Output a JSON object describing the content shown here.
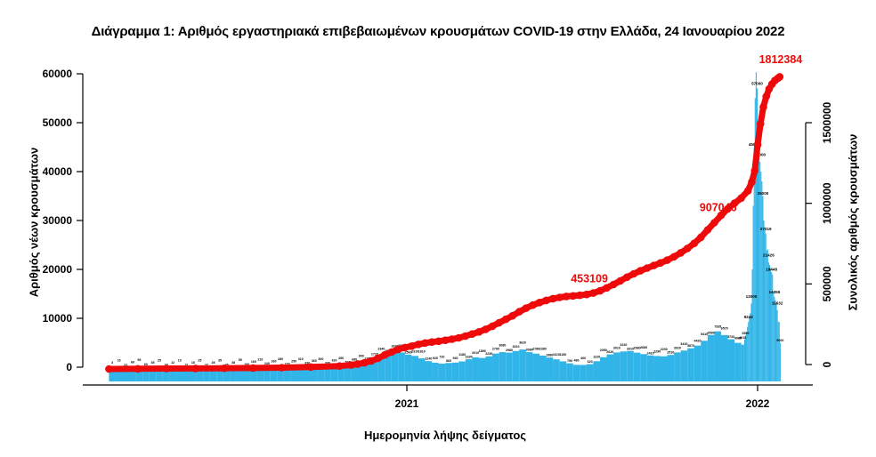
{
  "title": "Διάγραμμα 1: Αριθμός εργαστηριακά επιβεβαιωμένων κρουσμάτων COVID-19 στην Ελλάδα, 24 Ιανουαρίου 2022",
  "colors": {
    "bars": "#31b4e7",
    "cumulative": "#ee0a0a",
    "text": "#000000"
  },
  "chart_data": {
    "type": "composite",
    "x_axis": {
      "label": "Ημερομηνία λήψης δείγματος",
      "ticks": [
        {
          "label": "2021",
          "day": 310
        },
        {
          "label": "2022",
          "day": 675
        }
      ]
    },
    "y_left": {
      "label": "Αριθμός νέων κρουσμάτων",
      "range": [
        0,
        60000
      ],
      "ticks": [
        0,
        10000,
        20000,
        30000,
        40000,
        50000,
        60000
      ]
    },
    "y_right": {
      "label": "Συνολικός αριθμός κρουσμάτων",
      "range": [
        0,
        1500000
      ],
      "ticks": [
        0,
        500000,
        1000000,
        1500000
      ]
    },
    "series": [
      {
        "name": "daily_new_cases",
        "type": "bar",
        "axis": "left",
        "d": [
          0,
          7,
          14,
          21,
          28,
          35,
          42,
          49,
          56,
          63,
          70,
          77,
          84,
          91,
          98,
          105,
          112,
          119,
          126,
          133,
          140,
          147,
          154,
          161,
          168,
          175,
          182,
          189,
          196,
          203,
          210,
          217,
          224,
          231,
          238,
          245,
          252,
          259,
          266,
          273,
          280,
          287,
          294,
          301,
          308,
          315,
          322,
          329,
          336,
          343,
          350,
          357,
          364,
          371,
          378,
          385,
          392,
          399,
          406,
          413,
          420,
          427,
          434,
          441,
          448,
          455,
          462,
          469,
          476,
          483,
          490,
          497,
          504,
          511,
          518,
          525,
          532,
          539,
          546,
          553,
          560,
          567,
          574,
          581,
          588,
          595,
          602,
          609,
          616,
          623,
          630,
          637,
          644,
          651,
          658,
          661,
          662,
          663,
          664,
          665,
          666,
          667,
          668,
          669,
          670,
          671,
          672,
          673,
          674,
          675,
          676,
          677,
          678,
          679,
          680,
          681,
          682,
          683,
          684,
          685,
          686,
          687,
          688,
          689,
          690,
          691,
          692,
          693,
          694,
          695,
          696,
          697,
          698
        ],
        "v": [
          3,
          10,
          21,
          68,
          95,
          60,
          35,
          25,
          18,
          12,
          10,
          12,
          18,
          25,
          22,
          28,
          35,
          45,
          38,
          55,
          100,
          160,
          210,
          240,
          260,
          280,
          220,
          250,
          310,
          330,
          360,
          300,
          330,
          420,
          450,
          520,
          680,
          900,
          1250,
          1720,
          2340,
          2850,
          3320,
          3000,
          2560,
          2310,
          1810,
          1240,
          920,
          720,
          860,
          940,
          1180,
          1630,
          2010,
          1890,
          2230,
          2790,
          3080,
          2980,
          3310,
          3620,
          3080,
          2780,
          2380,
          1980,
          1610,
          1190,
          790,
          480,
          460,
          620,
          1220,
          2050,
          2620,
          3010,
          3220,
          3310,
          2980,
          2680,
          2410,
          2290,
          2230,
          2510,
          3020,
          3410,
          3870,
          4420,
          5410,
          6590,
          7335,
          6570,
          5720,
          4980,
          4610,
          5703,
          6500,
          7252,
          8252,
          9242,
          10324,
          11044,
          13000,
          20000,
          33000,
          45000,
          55000,
          60305,
          57000,
          50126,
          43855,
          42000,
          40000,
          38000,
          35000,
          30000,
          28609,
          27319,
          23884,
          24094,
          21426,
          20913,
          20318,
          19448,
          18946,
          15449,
          14359,
          13721,
          13137,
          11632,
          9318,
          9199,
          5000
        ]
      },
      {
        "name": "cumulative_cases",
        "type": "line",
        "axis": "right",
        "d": [
          0,
          30,
          60,
          90,
          120,
          150,
          180,
          210,
          240,
          252,
          259,
          266,
          273,
          280,
          287,
          294,
          301,
          308,
          315,
          322,
          329,
          336,
          343,
          350,
          357,
          364,
          371,
          378,
          385,
          392,
          399,
          406,
          413,
          420,
          427,
          434,
          441,
          448,
          455,
          462,
          469,
          476,
          483,
          490,
          497,
          504,
          511,
          518,
          525,
          532,
          539,
          546,
          553,
          560,
          567,
          574,
          581,
          588,
          595,
          602,
          609,
          616,
          623,
          630,
          637,
          644,
          651,
          658,
          665,
          669,
          672,
          675,
          678,
          681,
          684,
          687,
          690,
          693,
          696,
          698
        ],
        "v": [
          0,
          1000,
          2500,
          3500,
          4500,
          6000,
          8000,
          12000,
          18000,
          25000,
          31000,
          39000,
          50000,
          66000,
          87000,
          105000,
          122000,
          133000,
          142000,
          153000,
          161000,
          167000,
          172000,
          178000,
          185000,
          193000,
          204000,
          217000,
          230000,
          246000,
          265000,
          287000,
          308000,
          330000,
          355000,
          377000,
          396000,
          412000,
          425000,
          436000,
          444000,
          450000,
          453109,
          457000,
          462000,
          471000,
          485000,
          503000,
          524000,
          546000,
          569000,
          590000,
          609000,
          626000,
          642000,
          658000,
          675000,
          696000,
          720000,
          748000,
          779000,
          817000,
          863000,
          907046,
          953000,
          993000,
          1028000,
          1060000,
          1105000,
          1160000,
          1230000,
          1390000,
          1520000,
          1625000,
          1690000,
          1737000,
          1767000,
          1789000,
          1803000,
          1812384
        ]
      }
    ],
    "annotations": [
      {
        "text": "453109",
        "day": 500,
        "value": 510000,
        "anchor": "middle"
      },
      {
        "text": "907046",
        "day": 634,
        "value": 950000,
        "anchor": "middle"
      },
      {
        "text": "1812384",
        "day": 699,
        "value": 1870000,
        "anchor": "middle"
      }
    ],
    "bar_labels": "each bar is labelled with its value"
  }
}
